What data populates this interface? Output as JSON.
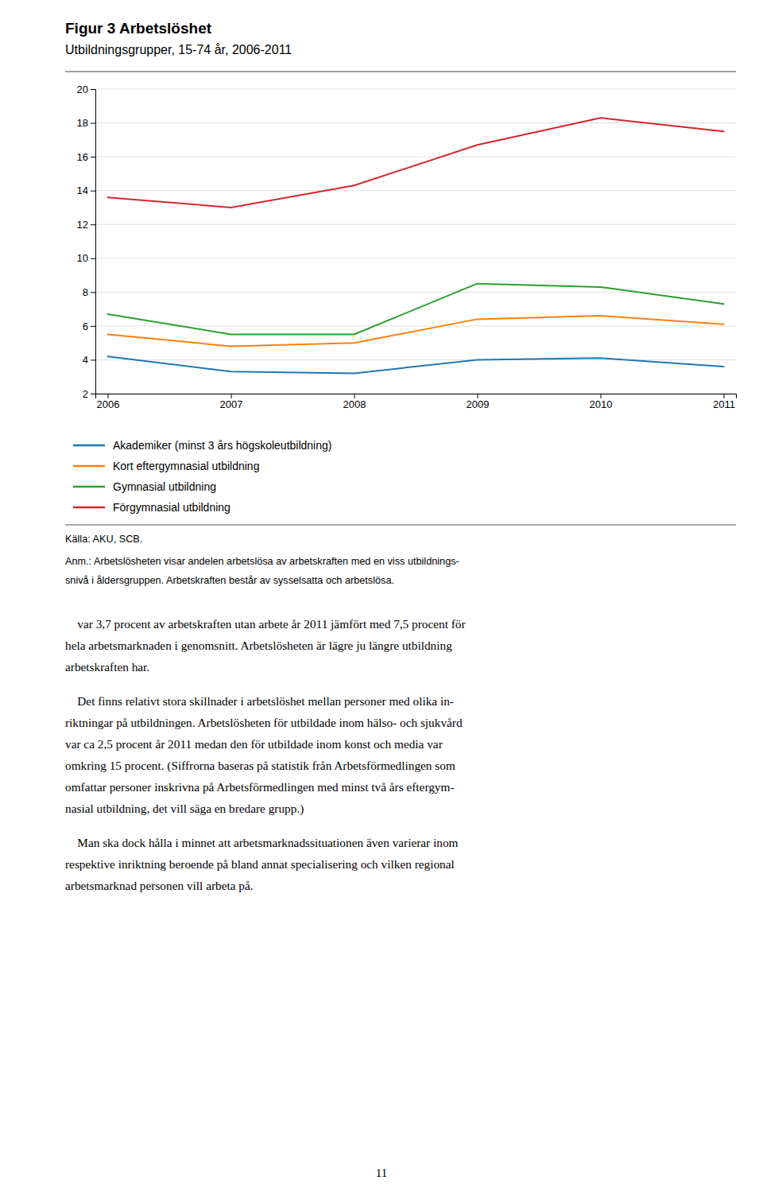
{
  "chart_data": {
    "type": "line",
    "title": "Figur 3 Arbetslöshet",
    "subtitle": "Utbildningsgrupper, 15-74 år, 2006-2011",
    "x": [
      2006,
      2007,
      2008,
      2009,
      2010,
      2011
    ],
    "series": [
      {
        "name": "Akademiker (minst 3 års högskoleutbildning)",
        "values": [
          4.2,
          3.3,
          3.2,
          4.0,
          4.1,
          3.6
        ]
      },
      {
        "name": "Kort eftergymnasial utbildning",
        "values": [
          5.5,
          4.8,
          5.0,
          6.4,
          6.6,
          6.1
        ]
      },
      {
        "name": "Gymnasial utbildning",
        "values": [
          6.7,
          5.5,
          5.5,
          8.5,
          8.3,
          7.3
        ]
      },
      {
        "name": "Förgymnasial utbildning",
        "values": [
          13.6,
          13.0,
          14.3,
          16.7,
          18.3,
          17.5
        ]
      }
    ],
    "xlim": [
      2005.9,
      2011.1
    ],
    "xticks": [
      2006,
      2007,
      2008,
      2009,
      2010,
      2011
    ],
    "ylim": [
      2,
      20
    ],
    "yticks": [
      2,
      4,
      6,
      8,
      10,
      12,
      14,
      16,
      18,
      20
    ],
    "grid": true,
    "legend": "bottom",
    "annotations": [
      [
        "Källa: AKU, SCB."
      ],
      [
        "Anm.: Arbetslösheten visar andelen arbetslösa av arbetskraften med en viss utbildnings-",
        "snivå i åldersgruppen. Arbetskraften består av sysselsatta och arbetslösa."
      ],
      [
        "    var 3,7 procent av arbetskraften utan arbete år 2011 jämfört med 7,5 procent för",
        "hela arbetsmarknaden i genomsnitt. Arbetslösheten är lägre ju längre utbildning",
        "arbetskraften har."
      ],
      [
        "    Det finns relativt stora skillnader i arbetslöshet mellan personer med olika in-",
        "riktningar på utbildningen. Arbetslösheten för utbildade inom hälso- och sjukvård",
        "var ca 2,5 procent år 2011 medan den för utbildade inom konst och media var",
        "omkring 15 procent. (Siffrorna baseras på statistik från Arbetsförmedlingen som",
        "omfattar personer inskrivna på Arbetsförmedlingen med minst två års eftergym-",
        "nasial utbildning, det vill säga en bredare grupp.)"
      ],
      [
        "    Man ska dock hålla i minnet att arbetsmarknadssituationen även varierar inom",
        "respektive inriktning beroende på bland annat specialisering och vilken regional",
        "arbetsmarknad personen vill arbeta på."
      ],
      [
        "11"
      ]
    ]
  }
}
